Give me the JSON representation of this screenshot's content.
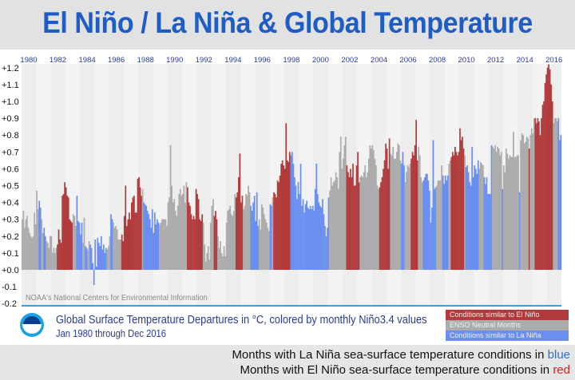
{
  "title": "El Niño / La Niña & Global Temperature",
  "credit": "NOAA's National Centers for Environmental Information",
  "caption": {
    "title": "Global Surface Temperature Departures in °C, colored by monthly Niño3.4 values",
    "subtitle": "Jan 1980 through Dec 2016"
  },
  "legend": [
    {
      "label": "Conditions similar to El Niño",
      "color": "#b13b3b"
    },
    {
      "label": "ENSO Neutral Months",
      "color": "#acacac"
    },
    {
      "label": "Conditions similar to La Niña",
      "color": "#6b8ff0"
    }
  ],
  "notes": {
    "line1_prefix": "Months with La Niña sea-surface temperature conditions in ",
    "line1_color_word": "blue",
    "line2_prefix": "Months with El Niño sea-surface temperature conditions in ",
    "line2_color_word": "red"
  },
  "chart_data": {
    "type": "bar",
    "title": "El Niño / La Niña & Global Temperature",
    "ylim": [
      -0.2,
      1.2
    ],
    "y_ticks": [
      "+1.2",
      "+1.1",
      "+1.0",
      "+0.9",
      "+0.8",
      "+0.7",
      "+0.6",
      "+0.5",
      "+0.4",
      "+0.3",
      "+0.2",
      "+0.1",
      "+0.0",
      "-0.1",
      "-0.2"
    ],
    "x_ticks": [
      "1980",
      "1982",
      "1984",
      "1986",
      "1988",
      "1990",
      "1992",
      "1994",
      "1996",
      "1998",
      "2000",
      "2002",
      "2004",
      "2006",
      "2008",
      "2010",
      "2012",
      "2014",
      "2016"
    ],
    "category_codes": {
      "R": "Conditions similar to El Niño",
      "N": "ENSO Neutral Months",
      "L": "Conditions similar to La Niña"
    },
    "category_colors": {
      "R": "#b13b3b",
      "N": "#acacac",
      "L": "#6b8ff0"
    },
    "years": [
      {
        "year": 1980,
        "enso": "NNNNNNNNNNNN",
        "values": [
          0.3,
          0.35,
          0.25,
          0.3,
          0.32,
          0.25,
          0.22,
          0.2,
          0.19,
          0.2,
          0.34,
          0.27
        ]
      },
      {
        "year": 1981,
        "enso": "NNLLNNLLNNNN",
        "values": [
          0.47,
          0.36,
          0.41,
          0.37,
          0.3,
          0.22,
          0.25,
          0.2,
          0.17,
          0.16,
          0.13,
          0.2
        ]
      },
      {
        "year": 1982,
        "enso": "NNNNNRRRRRRR",
        "values": [
          0.2,
          0.1,
          0.13,
          0.1,
          0.13,
          0.15,
          0.24,
          0.18,
          0.16,
          0.44,
          0.45,
          0.52
        ]
      },
      {
        "year": 1983,
        "enso": "RRRRRRNNNLLL",
        "values": [
          0.49,
          0.44,
          0.43,
          0.3,
          0.29,
          0.28,
          0.33,
          0.32,
          0.26,
          0.44,
          0.29,
          0.28
        ]
      },
      {
        "year": 1984,
        "enso": "LLNNLLNNLLLL",
        "values": [
          0.21,
          0.28,
          0.16,
          0.31,
          0.14,
          0.13,
          0.12,
          0.17,
          0.15,
          0.13,
          0.04,
          -0.09
        ]
      },
      {
        "year": 1985,
        "enso": "LLLLLLLLLLNN",
        "values": [
          0.18,
          0.02,
          0.19,
          0.16,
          0.14,
          0.2,
          0.12,
          0.15,
          0.1,
          0.13,
          0.12,
          0.14
        ]
      },
      {
        "year": 1986,
        "enso": "NLLNNNNNNNRR",
        "values": [
          0.2,
          0.33,
          0.3,
          0.28,
          0.25,
          0.26,
          0.24,
          0.18,
          0.18,
          0.18,
          0.21,
          0.17
        ]
      },
      {
        "year": 1987,
        "enso": "RRRRRRRRRRRR",
        "values": [
          0.32,
          0.5,
          0.26,
          0.3,
          0.34,
          0.3,
          0.4,
          0.43,
          0.44,
          0.34,
          0.34,
          0.54
        ]
      },
      {
        "year": 1988,
        "enso": "RRRNLLLLLLLL",
        "values": [
          0.55,
          0.49,
          0.44,
          0.48,
          0.4,
          0.39,
          0.38,
          0.35,
          0.33,
          0.3,
          0.25,
          0.36
        ]
      },
      {
        "year": 1989,
        "enso": "LLLLLNNNNNNN",
        "values": [
          0.22,
          0.34,
          0.27,
          0.3,
          0.28,
          0.27,
          0.28,
          0.3,
          0.3,
          0.3,
          0.3,
          0.26
        ]
      },
      {
        "year": 1990,
        "enso": "NNNNNNNNNNNN",
        "values": [
          0.4,
          0.43,
          0.74,
          0.5,
          0.4,
          0.42,
          0.35,
          0.32,
          0.38,
          0.45,
          0.48,
          0.44
        ]
      },
      {
        "year": 1991,
        "enso": "NNNNRRRRRRRR",
        "values": [
          0.45,
          0.5,
          0.4,
          0.52,
          0.49,
          0.4,
          0.38,
          0.33,
          0.3,
          0.32,
          0.3,
          0.48
        ]
      },
      {
        "year": 1992,
        "enso": "RRRRRNNNNNNN",
        "values": [
          0.45,
          0.42,
          0.3,
          0.29,
          0.33,
          0.28,
          0.15,
          0.05,
          0.1,
          0.14,
          0.06,
          0.28
        ]
      },
      {
        "year": 1993,
        "enso": "NNRRRNNNNNNN",
        "values": [
          0.38,
          0.42,
          0.32,
          0.35,
          0.3,
          0.2,
          0.13,
          0.17,
          0.1,
          0.08,
          0.14,
          0.08
        ]
      },
      {
        "year": 1994,
        "enso": "NNNNNNNNRRRR",
        "values": [
          0.28,
          0.35,
          0.36,
          0.38,
          0.33,
          0.32,
          0.35,
          0.45,
          0.43,
          0.46,
          0.55,
          0.69
        ]
      },
      {
        "year": 1995,
        "enso": "RRNNNNNNLLLL",
        "values": [
          0.4,
          0.44,
          0.36,
          0.38,
          0.45,
          0.44,
          0.5,
          0.46,
          0.38,
          0.35,
          0.4,
          0.44
        ]
      },
      {
        "year": 1996,
        "enso": "LLLNNNNNNNNN",
        "values": [
          0.29,
          0.46,
          0.26,
          0.3,
          0.24,
          0.39,
          0.37,
          0.33,
          0.3,
          0.28,
          0.25,
          0.23
        ]
      },
      {
        "year": 1997,
        "enso": "LLNRRRRRRRRR",
        "values": [
          0.39,
          0.38,
          0.43,
          0.46,
          0.45,
          0.43,
          0.53,
          0.52,
          0.56,
          0.63,
          0.65,
          0.62
        ]
      },
      {
        "year": 1998,
        "enso": "RRRRRLLLLLLL",
        "values": [
          0.6,
          0.87,
          0.65,
          0.64,
          0.7,
          0.68,
          0.7,
          0.63,
          0.55,
          0.5,
          0.42,
          0.52
        ]
      },
      {
        "year": 1999,
        "enso": "LLLLLLLLLLLL",
        "values": [
          0.45,
          0.63,
          0.38,
          0.42,
          0.34,
          0.39,
          0.41,
          0.37,
          0.36,
          0.38,
          0.36,
          0.38
        ]
      },
      {
        "year": 2000,
        "enso": "LLLLLLLLLLLL",
        "values": [
          0.35,
          0.48,
          0.63,
          0.45,
          0.4,
          0.38,
          0.37,
          0.42,
          0.33,
          0.26,
          0.2,
          0.25
        ]
      },
      {
        "year": 2001,
        "enso": "LNNNNNNNNNNN",
        "values": [
          0.43,
          0.47,
          0.55,
          0.5,
          0.52,
          0.53,
          0.58,
          0.55,
          0.48,
          0.7,
          0.79,
          0.6
        ]
      },
      {
        "year": 2002,
        "enso": "NNNRRRRRRRRR",
        "values": [
          0.66,
          0.74,
          0.79,
          0.62,
          0.58,
          0.55,
          0.6,
          0.55,
          0.63,
          0.5,
          0.5,
          0.62
        ]
      },
      {
        "year": 2003,
        "enso": "RRNNNNNNNNNN",
        "values": [
          0.7,
          0.52,
          0.55,
          0.56,
          0.55,
          0.58,
          0.62,
          0.55,
          0.58,
          0.66,
          0.74,
          0.72
        ]
      },
      {
        "year": 2004,
        "enso": "NNNNNNRRRRRR",
        "values": [
          0.74,
          0.71,
          0.66,
          0.62,
          0.5,
          0.48,
          0.49,
          0.52,
          0.55,
          0.6,
          0.65,
          0.75
        ]
      },
      {
        "year": 2005,
        "enso": "RRRNNNNNNNNN",
        "values": [
          0.72,
          0.6,
          0.78,
          0.69,
          0.68,
          0.73,
          0.66,
          0.66,
          0.7,
          0.75,
          0.74,
          0.65
        ]
      },
      {
        "year": 2006,
        "enso": "LLLNNNNNRRRR",
        "values": [
          0.63,
          0.7,
          0.62,
          0.52,
          0.58,
          0.62,
          0.61,
          0.63,
          0.66,
          0.7,
          0.68,
          0.74
        ]
      },
      {
        "year": 2007,
        "enso": "RRNNNNLLLLLL",
        "values": [
          0.89,
          0.65,
          0.73,
          0.68,
          0.55,
          0.52,
          0.53,
          0.55,
          0.57,
          0.57,
          0.53,
          0.47
        ]
      },
      {
        "year": 2008,
        "enso": "LLLLLNNNNNLL",
        "values": [
          0.28,
          0.37,
          0.77,
          0.48,
          0.49,
          0.5,
          0.53,
          0.53,
          0.53,
          0.62,
          0.56,
          0.51
        ]
      },
      {
        "year": 2009,
        "enso": "LLLNNRRRRRRR",
        "values": [
          0.56,
          0.53,
          0.56,
          0.63,
          0.65,
          0.67,
          0.7,
          0.68,
          0.73,
          0.7,
          0.68,
          0.7
        ]
      },
      {
        "year": 2010,
        "enso": "RRRRNLLLLLLL",
        "values": [
          0.84,
          0.77,
          0.79,
          0.72,
          0.68,
          0.61,
          0.62,
          0.58,
          0.52,
          0.5,
          0.73,
          0.55
        ]
      },
      {
        "year": 2011,
        "enso": "LLLLNNNNLLLL",
        "values": [
          0.62,
          0.6,
          0.57,
          0.65,
          0.6,
          0.64,
          0.63,
          0.62,
          0.55,
          0.51,
          0.55,
          0.45
        ]
      },
      {
        "year": 2012,
        "enso": "LLLNNNNNNNNL",
        "values": [
          0.45,
          0.45,
          0.74,
          0.73,
          0.72,
          0.74,
          0.7,
          0.73,
          0.72,
          0.68,
          0.7,
          0.48
        ]
      },
      {
        "year": 2013,
        "enso": "NNNNNNNNNNNN",
        "values": [
          0.62,
          0.58,
          0.72,
          0.69,
          0.66,
          0.68,
          0.67,
          0.67,
          0.82,
          0.67,
          0.67,
          0.68
        ]
      },
      {
        "year": 2014,
        "enso": "NLNNNNNNNRNN",
        "values": [
          0.68,
          0.46,
          0.77,
          0.81,
          0.8,
          0.75,
          0.76,
          0.79,
          0.78,
          0.72,
          0.8,
          0.84
        ]
      },
      {
        "year": 2015,
        "enso": "NNRRRRRRRRRR",
        "values": [
          0.81,
          0.9,
          0.9,
          0.87,
          0.9,
          0.88,
          0.8,
          0.9,
          0.98,
          1.0,
          1.11,
          1.16
        ]
      },
      {
        "year": 2016,
        "enso": "RRRRRNNNNLLL",
        "values": [
          1.2,
          1.22,
          1.19,
          1.1,
          1.0,
          0.87,
          0.9,
          0.9,
          0.88,
          0.9,
          0.77,
          0.8
        ]
      }
    ]
  }
}
